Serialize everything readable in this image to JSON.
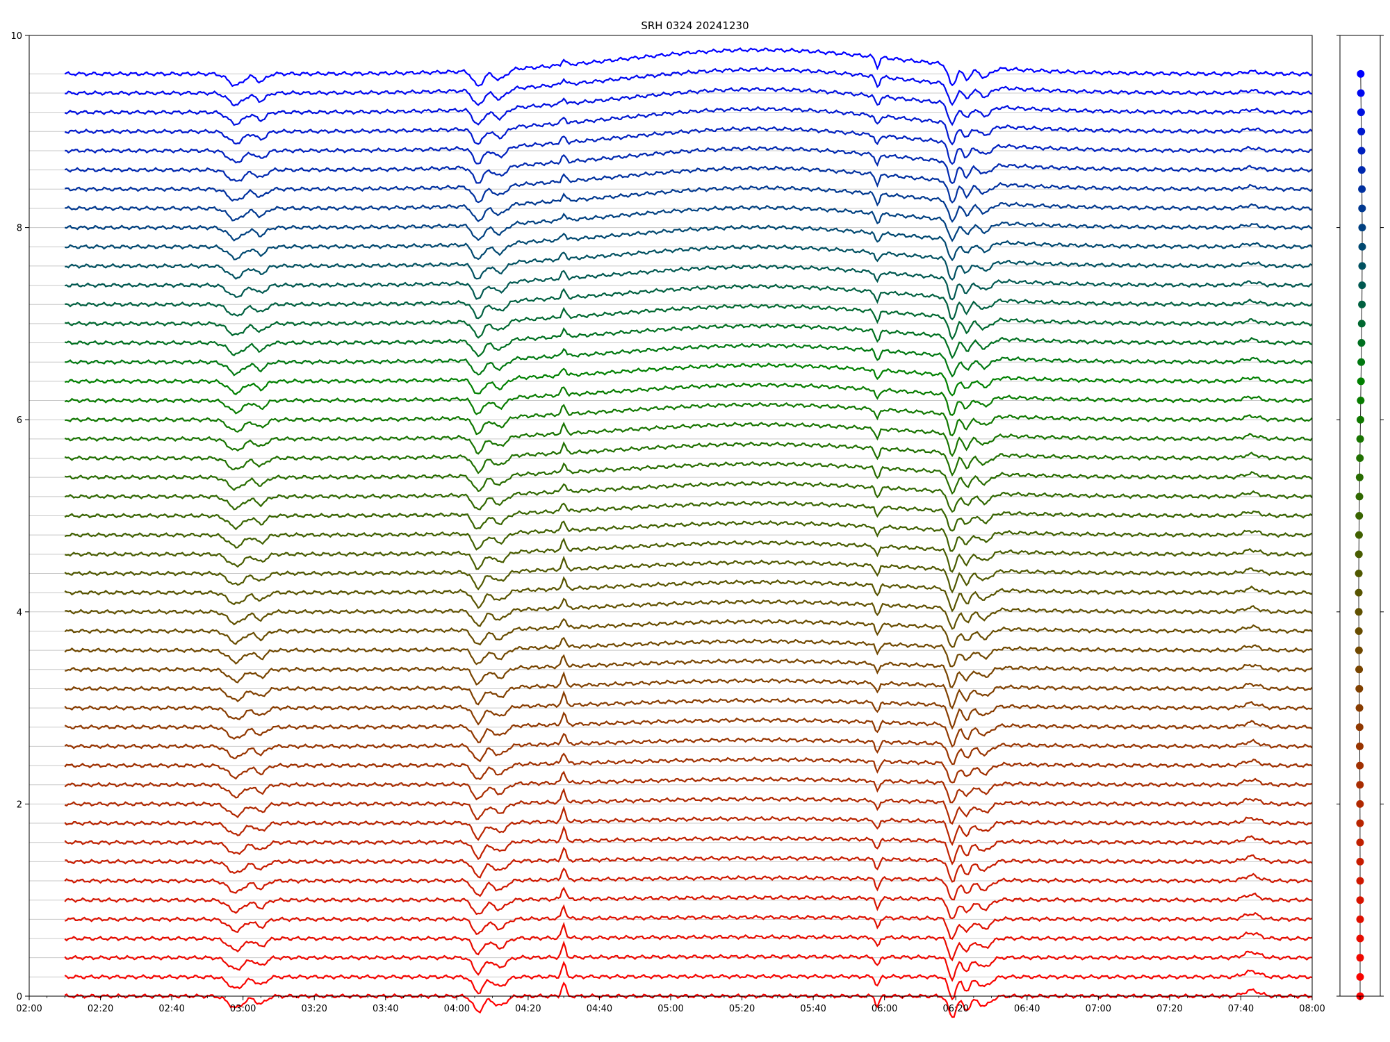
{
  "chart_data": {
    "type": "line",
    "title": "SRH 0324 20241230",
    "xlabel": "",
    "ylabel": "",
    "x_range": [
      "02:00",
      "08:00"
    ],
    "ylim": [
      0,
      10
    ],
    "grid": true,
    "x_tick_labels": [
      "02:00",
      "02:20",
      "02:40",
      "03:00",
      "03:20",
      "03:40",
      "04:00",
      "04:20",
      "04:40",
      "05:00",
      "05:20",
      "05:40",
      "06:00",
      "06:20",
      "06:40",
      "07:00",
      "07:20",
      "07:40",
      "08:00"
    ],
    "y_tick_labels": [
      "0",
      "2",
      "4",
      "6",
      "8",
      "10"
    ],
    "series_count": 49,
    "trace_spacing": 0.2,
    "trace_start": "02:10",
    "trace_end": "08:00",
    "color_gradient": [
      "#ff0000",
      "#804000",
      "#008000",
      "#0000ff"
    ],
    "features": [
      {
        "time": "02:58",
        "depth": 0.12,
        "width": 3
      },
      {
        "time": "03:05",
        "depth": 0.08,
        "width": 2
      },
      {
        "time": "04:06",
        "depth": 0.16,
        "width": 2
      },
      {
        "time": "04:12",
        "depth": 0.1,
        "width": 2.5
      },
      {
        "time": "04:30",
        "peak": 0.14,
        "width": 0.8
      },
      {
        "time": "05:58",
        "depth": 0.1,
        "width": 0.8
      },
      {
        "time": "06:19",
        "depth": 0.22,
        "width": 1.5
      },
      {
        "time": "06:23",
        "depth": 0.14,
        "width": 1.5
      },
      {
        "time": "06:28",
        "depth": 0.1,
        "width": 2.5
      },
      {
        "time": "07:43",
        "peak": 0.06,
        "width": 3
      }
    ],
    "side_panel": {
      "type": "scatter",
      "ylim": [
        0,
        10
      ],
      "point_count": 49
    }
  }
}
